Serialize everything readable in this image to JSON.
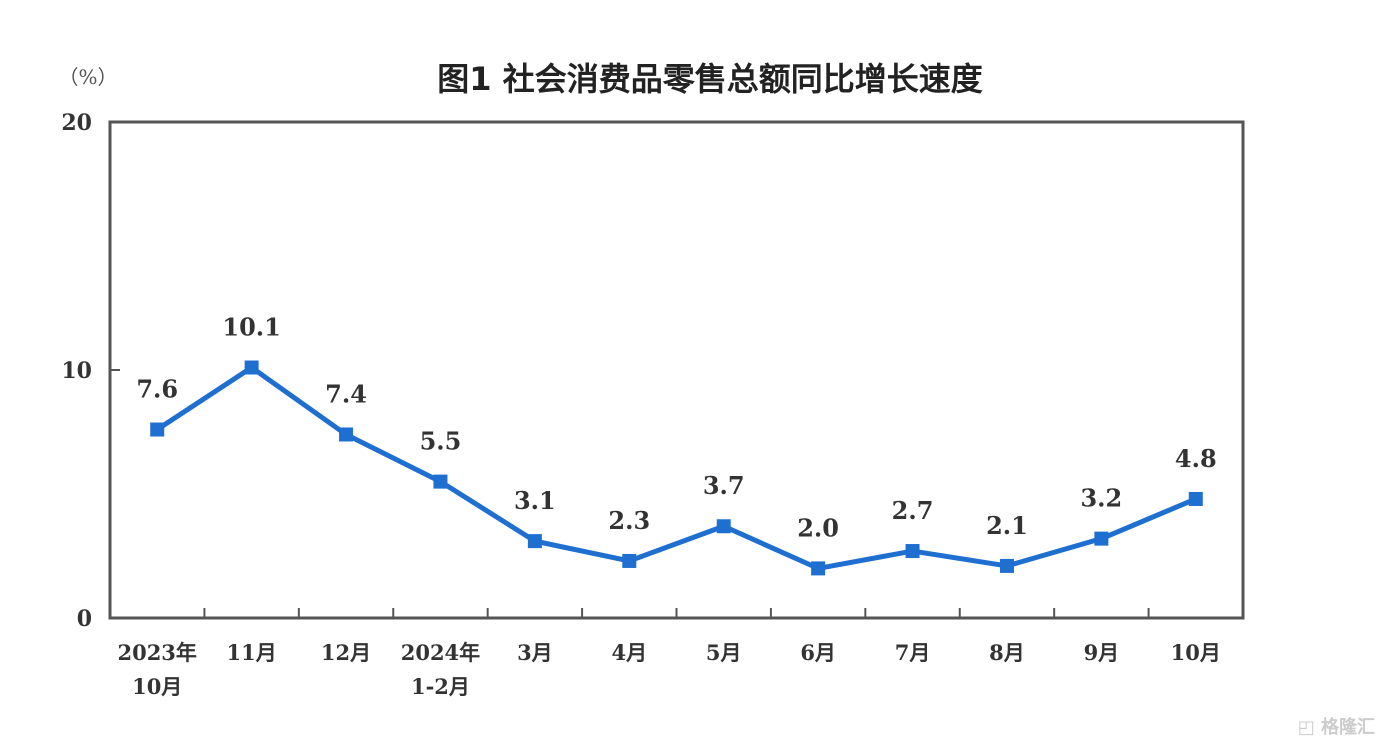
{
  "chart_data": {
    "type": "line",
    "title": "图1  社会消费品零售总额同比增长速度",
    "ylabel": "（%）",
    "xlabel": "",
    "ylim": [
      0,
      20
    ],
    "yticks": [
      0,
      10,
      20
    ],
    "grid": false,
    "categories": [
      [
        "2023年",
        "10月"
      ],
      [
        "11月"
      ],
      [
        "12月"
      ],
      [
        "2024年",
        "1-2月"
      ],
      [
        "3月"
      ],
      [
        "4月"
      ],
      [
        "5月"
      ],
      [
        "6月"
      ],
      [
        "7月"
      ],
      [
        "8月"
      ],
      [
        "9月"
      ],
      [
        "10月"
      ]
    ],
    "series": [
      {
        "values": [
          7.6,
          10.1,
          7.4,
          5.5,
          3.1,
          2.3,
          3.7,
          2.0,
          2.7,
          2.1,
          3.2,
          4.8
        ],
        "labels": [
          "7.6",
          "10.1",
          "7.4",
          "5.5",
          "3.1",
          "2.3",
          "3.7",
          "2.0",
          "2.7",
          "2.1",
          "3.2",
          "4.8"
        ],
        "color": "#1f6fd1",
        "marker": "square"
      }
    ]
  },
  "watermark": "格隆汇"
}
